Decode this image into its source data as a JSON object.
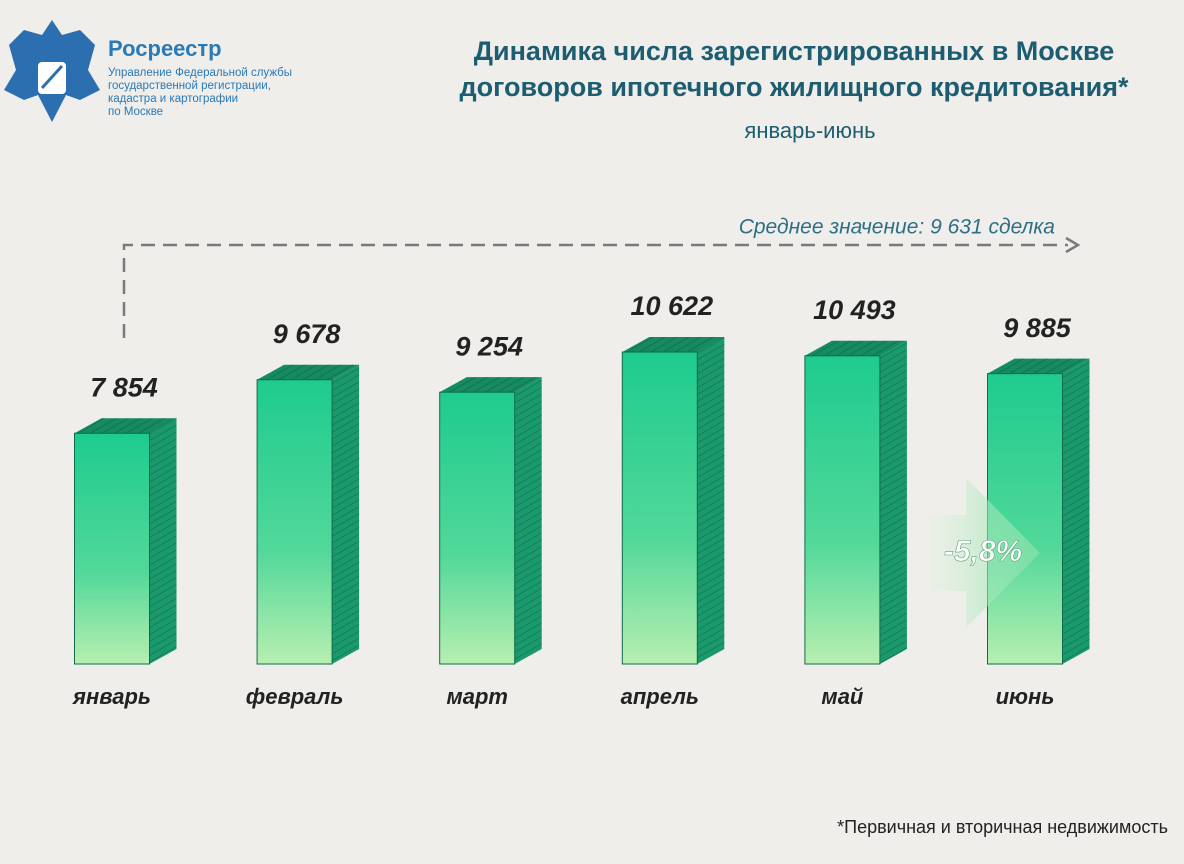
{
  "logo": {
    "name": "Росреестр",
    "lines": [
      "Управление Федеральной службы",
      "государственной регистрации,",
      "кадастра и картографии",
      "по Москве"
    ]
  },
  "chart_data": {
    "type": "bar",
    "title": [
      "Динамика числа зарегистрированных в Москве",
      "договоров ипотечного жилищного кредитования*"
    ],
    "subtitle": "январь-июнь",
    "categories": [
      "январь",
      "февраль",
      "март",
      "апрель",
      "май",
      "июнь"
    ],
    "values": [
      7854,
      9678,
      9254,
      10622,
      10493,
      9885
    ],
    "value_labels": [
      "7 854",
      "9 678",
      "9 254",
      "10 622",
      "10 493",
      "9 885"
    ],
    "color": "#1ecb8e",
    "annotations": [
      "Среднее значение: 9 631 сделка",
      "-5,8%"
    ]
  },
  "footnote": "*Первичная и вторичная недвижимость"
}
